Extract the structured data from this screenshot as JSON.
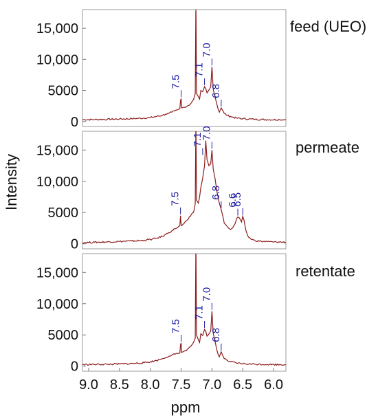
{
  "chart_data": [
    {
      "type": "line",
      "panel_label": "feed (UEO)",
      "xlabel": "ppm",
      "ylabel": "Intensity",
      "xlim": [
        9.1,
        5.8
      ],
      "ylim": [
        -800,
        18000
      ],
      "x_reversed": true,
      "yticks": [
        {
          "value": 0,
          "label": "0"
        },
        {
          "value": 5000,
          "label": "5000"
        },
        {
          "value": 10000,
          "label": "10,000"
        },
        {
          "value": 15000,
          "label": "15,000"
        }
      ],
      "xticks": [],
      "line_color": "#8b1a1a",
      "label_color": "#1a1aa0",
      "series": [
        {
          "x": [
            9.1,
            8.9,
            8.7,
            8.5,
            8.3,
            8.1,
            8.0,
            7.9,
            7.8,
            7.75,
            7.7,
            7.65,
            7.6,
            7.55,
            7.52,
            7.51,
            7.5,
            7.49,
            7.45,
            7.4,
            7.35,
            7.3,
            7.27,
            7.262,
            7.26,
            7.258,
            7.25,
            7.22,
            7.2,
            7.18,
            7.15,
            7.12,
            7.1,
            7.08,
            7.06,
            7.04,
            7.02,
            7.0,
            6.98,
            6.95,
            6.92,
            6.9,
            6.88,
            6.85,
            6.82,
            6.8,
            6.75,
            6.7,
            6.6,
            6.5,
            6.4,
            6.3,
            6.1,
            5.9,
            5.8
          ],
          "y": [
            300,
            320,
            350,
            400,
            450,
            550,
            650,
            800,
            1000,
            1200,
            1300,
            1500,
            1700,
            1900,
            2100,
            3300,
            3700,
            2200,
            2300,
            2500,
            2800,
            3500,
            4500,
            17500,
            18000,
            17500,
            4500,
            4000,
            3600,
            5000,
            4800,
            5600,
            5300,
            4600,
            4900,
            5200,
            5600,
            8800,
            5200,
            4000,
            2800,
            2000,
            1500,
            2200,
            1700,
            1300,
            1000,
            800,
            550,
            450,
            400,
            350,
            300,
            300,
            300
          ]
        }
      ],
      "annotations": [
        {
          "text": "7.5",
          "x": 7.5,
          "y": 3700
        },
        {
          "text": "7.1",
          "x": 7.12,
          "y": 5600
        },
        {
          "text": "7.0",
          "x": 7.0,
          "y": 8800
        },
        {
          "text": "6.8",
          "x": 6.85,
          "y": 2200
        }
      ]
    },
    {
      "type": "line",
      "panel_label": "permeate",
      "xlabel": "ppm",
      "ylabel": "Intensity",
      "xlim": [
        9.1,
        5.8
      ],
      "ylim": [
        -800,
        18000
      ],
      "x_reversed": true,
      "yticks": [
        {
          "value": 0,
          "label": "0"
        },
        {
          "value": 5000,
          "label": "5000"
        },
        {
          "value": 10000,
          "label": "10,000"
        },
        {
          "value": 15000,
          "label": "15,000"
        }
      ],
      "xticks": [],
      "line_color": "#8b1a1a",
      "label_color": "#1a1aa0",
      "series": [
        {
          "x": [
            9.1,
            8.9,
            8.7,
            8.5,
            8.3,
            8.1,
            8.0,
            7.9,
            7.8,
            7.75,
            7.7,
            7.65,
            7.6,
            7.55,
            7.52,
            7.51,
            7.5,
            7.49,
            7.45,
            7.4,
            7.35,
            7.3,
            7.28,
            7.27,
            7.262,
            7.26,
            7.258,
            7.25,
            7.22,
            7.2,
            7.18,
            7.15,
            7.12,
            7.1,
            7.08,
            7.05,
            7.02,
            7.0,
            6.98,
            6.95,
            6.92,
            6.88,
            6.85,
            6.82,
            6.8,
            6.77,
            6.74,
            6.7,
            6.67,
            6.65,
            6.62,
            6.6,
            6.58,
            6.56,
            6.54,
            6.52,
            6.5,
            6.48,
            6.45,
            6.42,
            6.4,
            6.35,
            6.3,
            6.2,
            6.1,
            6.0,
            5.9,
            5.8
          ],
          "y": [
            200,
            250,
            300,
            380,
            450,
            550,
            700,
            900,
            1200,
            1500,
            1800,
            2100,
            2400,
            2700,
            2900,
            4500,
            3200,
            2900,
            3300,
            3800,
            4400,
            5000,
            5800,
            6500,
            18000,
            18000,
            18000,
            7000,
            6500,
            7500,
            9000,
            10500,
            12500,
            16500,
            13500,
            12500,
            12800,
            15000,
            12000,
            10500,
            8500,
            6500,
            5500,
            4300,
            3300,
            3000,
            2600,
            2300,
            2500,
            2800,
            3300,
            4000,
            4300,
            4200,
            3900,
            3500,
            4400,
            3800,
            2200,
            1300,
            1000,
            700,
            500,
            400,
            350,
            300,
            280,
            250
          ]
        }
      ],
      "annotations": [
        {
          "text": "7.5",
          "x": 7.51,
          "y": 4500
        },
        {
          "text": "7.1",
          "x": 7.15,
          "y": 14000
        },
        {
          "text": "7.0",
          "x": 7.0,
          "y": 15000
        },
        {
          "text": "6.8",
          "x": 6.85,
          "y": 5500
        },
        {
          "text": "6.6",
          "x": 6.58,
          "y": 4300
        },
        {
          "text": "6.5",
          "x": 6.5,
          "y": 4400
        }
      ]
    },
    {
      "type": "line",
      "panel_label": "retentate",
      "xlabel": "ppm",
      "ylabel": "Intensity",
      "xlim": [
        9.1,
        5.8
      ],
      "ylim": [
        -800,
        18000
      ],
      "x_reversed": true,
      "yticks": [
        {
          "value": 0,
          "label": "0"
        },
        {
          "value": 5000,
          "label": "5000"
        },
        {
          "value": 10000,
          "label": "10,000"
        },
        {
          "value": 15000,
          "label": "15,000"
        }
      ],
      "xticks": [
        {
          "value": 9.0,
          "label": "9.0"
        },
        {
          "value": 8.5,
          "label": "8.5"
        },
        {
          "value": 8.0,
          "label": "8.0"
        },
        {
          "value": 7.5,
          "label": "7.5"
        },
        {
          "value": 7.0,
          "label": "7.0"
        },
        {
          "value": 6.5,
          "label": "6.5"
        },
        {
          "value": 6.0,
          "label": "6.0"
        }
      ],
      "line_color": "#8b1a1a",
      "label_color": "#1a1aa0",
      "series": [
        {
          "x": [
            9.1,
            8.9,
            8.7,
            8.5,
            8.3,
            8.1,
            8.0,
            7.9,
            7.8,
            7.75,
            7.7,
            7.65,
            7.6,
            7.55,
            7.52,
            7.51,
            7.5,
            7.49,
            7.45,
            7.4,
            7.35,
            7.3,
            7.27,
            7.262,
            7.26,
            7.258,
            7.25,
            7.22,
            7.2,
            7.18,
            7.15,
            7.12,
            7.1,
            7.08,
            7.06,
            7.04,
            7.02,
            7.0,
            6.98,
            6.95,
            6.92,
            6.9,
            6.88,
            6.85,
            6.82,
            6.8,
            6.75,
            6.7,
            6.6,
            6.5,
            6.4,
            6.3,
            6.1,
            5.9,
            5.8
          ],
          "y": [
            250,
            280,
            300,
            350,
            420,
            550,
            700,
            900,
            1200,
            1400,
            1600,
            1800,
            1900,
            2000,
            2100,
            3400,
            3700,
            2200,
            2400,
            2700,
            3100,
            3800,
            4500,
            18000,
            18000,
            18000,
            5000,
            4200,
            3800,
            5200,
            4900,
            5900,
            5600,
            4800,
            5000,
            5300,
            5600,
            8800,
            5300,
            4000,
            2600,
            1900,
            1500,
            2300,
            1600,
            1200,
            900,
            700,
            500,
            400,
            350,
            320,
            280,
            260,
            250
          ]
        }
      ],
      "annotations": [
        {
          "text": "7.5",
          "x": 7.5,
          "y": 3700
        },
        {
          "text": "7.1",
          "x": 7.12,
          "y": 5900
        },
        {
          "text": "7.0",
          "x": 7.0,
          "y": 8800
        },
        {
          "text": "6.8",
          "x": 6.85,
          "y": 2300
        }
      ]
    }
  ]
}
